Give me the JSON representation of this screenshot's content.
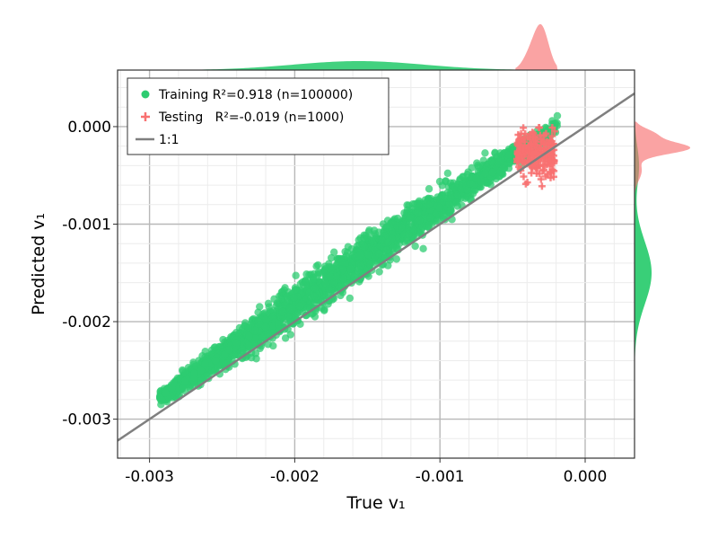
{
  "chart_data": {
    "type": "scatter",
    "xlabel": "True v₁",
    "ylabel": "Predicted v₁",
    "xlim": [
      -0.00322,
      0.00034
    ],
    "ylim": [
      -0.0034,
      0.00058
    ],
    "xticks": [
      -0.003,
      -0.002,
      -0.001,
      0.0
    ],
    "xtick_labels": [
      "-0.003",
      "-0.002",
      "-0.001",
      "0.000"
    ],
    "yticks": [
      -0.003,
      -0.002,
      -0.001,
      0.0
    ],
    "ytick_labels": [
      "-0.003",
      "-0.002",
      "-0.001",
      "0.000"
    ],
    "grid": true,
    "legend_position": "top-left",
    "reference_line": {
      "name": "1:1",
      "slope": 1,
      "intercept": 0,
      "color": "#7f7f7f"
    },
    "series": [
      {
        "name": "Training R²=0.918 (n=100000)",
        "marker": "circle",
        "color": "#2ecc71",
        "x_range": [
          -0.00293,
          -0.00018
        ],
        "y_range": [
          -0.00287,
          1e-05
        ],
        "n": 100000,
        "r2": 0.918
      },
      {
        "name": "Testing   R²=-0.019 (n=1000)",
        "marker": "plus",
        "color": "#f87171",
        "x_range": [
          -0.00047,
          -0.00021
        ],
        "y_range": [
          -0.0007,
          -1e-05
        ],
        "n": 1000,
        "r2": -0.019
      }
    ],
    "marginal_x": [
      {
        "series": "Training",
        "color": "#2ecc71",
        "peak_x": -0.00156
      },
      {
        "series": "Testing",
        "color": "#f87171",
        "peak_x": -0.0003
      }
    ],
    "marginal_y": [
      {
        "series": "Testing",
        "color": "#f87171",
        "peak_y": -0.00022
      },
      {
        "series": "Training",
        "color": "#2ecc71",
        "peak_y": -0.0015
      }
    ]
  }
}
